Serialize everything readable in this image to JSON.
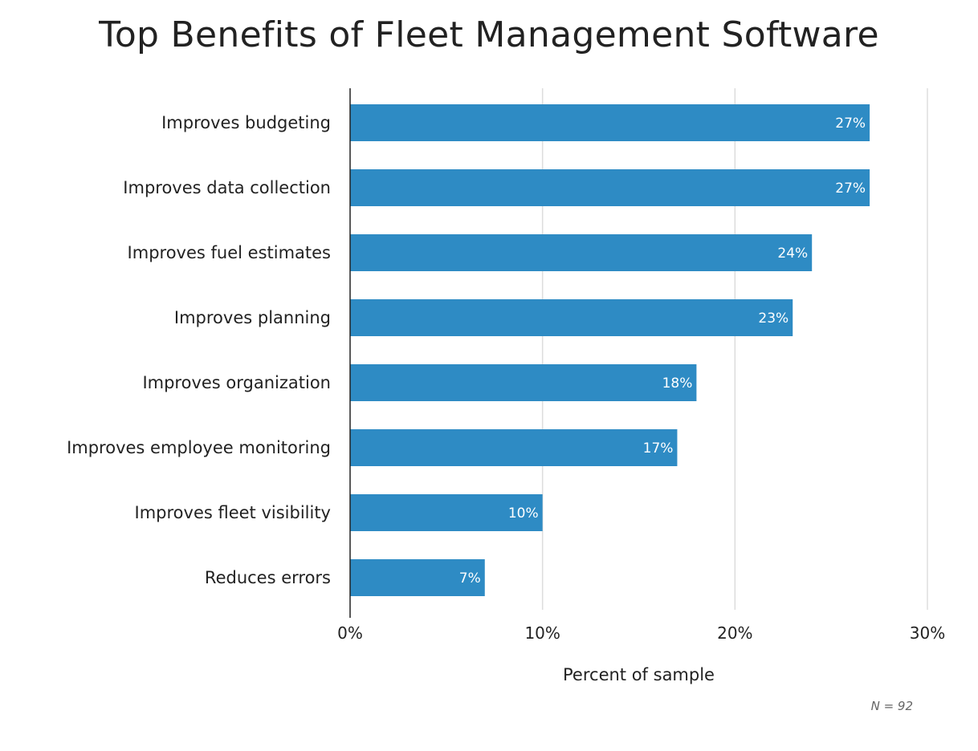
{
  "chart_data": {
    "type": "bar",
    "orientation": "horizontal",
    "title": "Top Benefits of Fleet Management Software",
    "xlabel": "Percent of sample",
    "ylabel": "",
    "categories": [
      "Improves budgeting",
      "Improves data collection",
      "Improves fuel estimates",
      "Improves planning",
      "Improves organization",
      "Improves employee monitoring",
      "Improves fleet visibility",
      "Reduces errors"
    ],
    "values": [
      27,
      27,
      24,
      23,
      18,
      17,
      10,
      7
    ],
    "data_labels": [
      "27%",
      "27%",
      "24%",
      "23%",
      "18%",
      "17%",
      "10%",
      "7%"
    ],
    "xlim": [
      0,
      30
    ],
    "xticks": [
      0,
      10,
      20,
      30
    ],
    "xtick_labels": [
      "0%",
      "10%",
      "20%",
      "30%"
    ],
    "grid": true,
    "legend": "none",
    "note": "N = 92",
    "colors": {
      "bar": "#2e8bc4",
      "grid": "#dddddd",
      "axis": "#222222",
      "data_label": "#ffffff"
    }
  }
}
